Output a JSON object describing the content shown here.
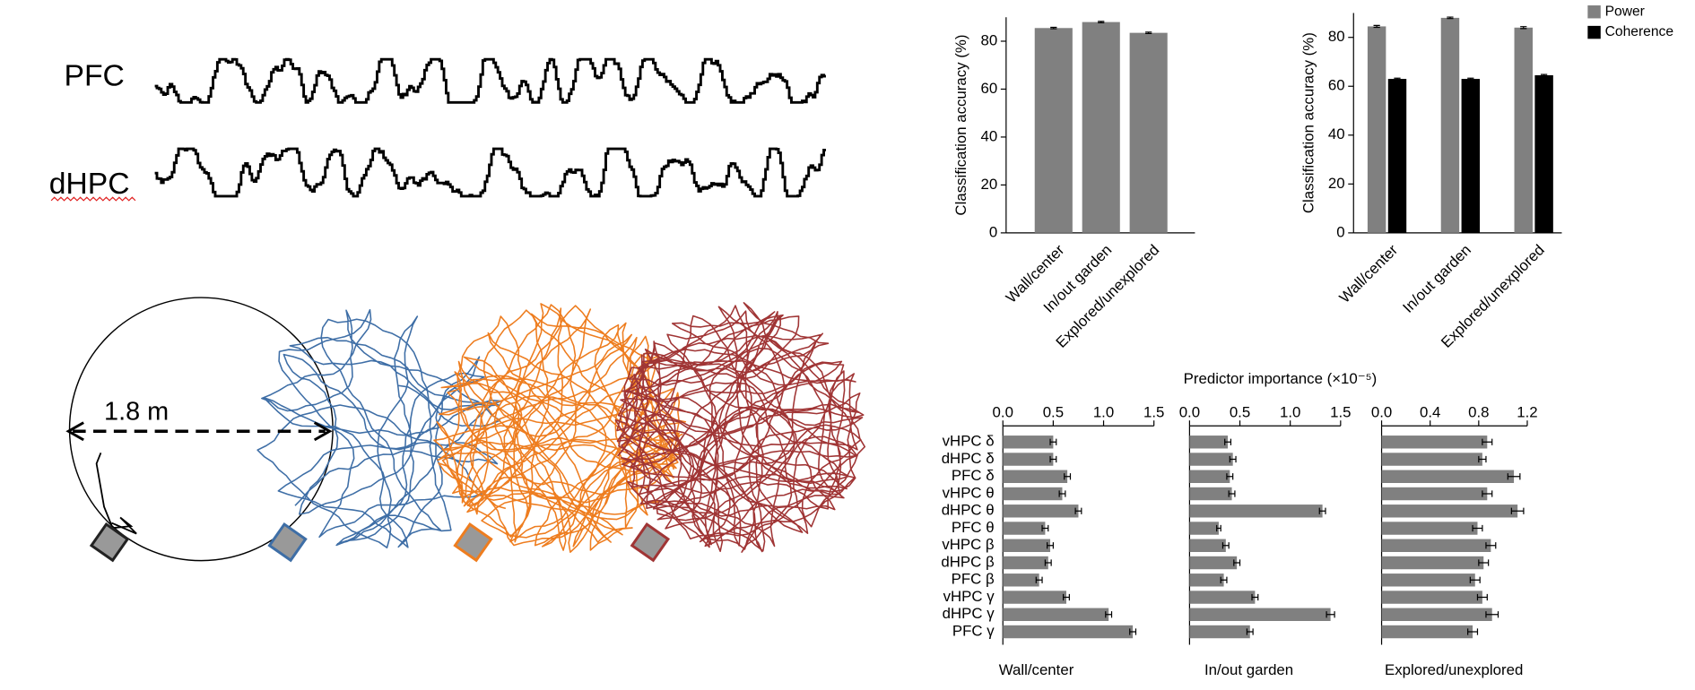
{
  "figure": {
    "trace_labels": [
      "PFC",
      "dHPC"
    ],
    "arena_scale": "1.8 m"
  },
  "chart_data": [
    {
      "type": "bar",
      "ylabel": "Classification accuracy (%)",
      "categories": [
        "Wall/center",
        "In/out garden",
        "Explored/unexplored"
      ],
      "values": [
        85.5,
        88,
        83.5
      ],
      "errors": [
        0.3,
        0.3,
        0.3
      ],
      "color": "#808080",
      "ylim": [
        0,
        90
      ],
      "yticks": [
        0,
        20,
        40,
        60,
        80
      ]
    },
    {
      "type": "grouped-bar",
      "ylabel": "Classification accuracy (%)",
      "categories": [
        "Wall/center",
        "In/out garden",
        "Explored/unexplored"
      ],
      "series": [
        {
          "name": "Power",
          "color": "#808080",
          "values": [
            84.5,
            88,
            84
          ],
          "errors": [
            0.4,
            0.3,
            0.4
          ]
        },
        {
          "name": "Coherence",
          "color": "#000000",
          "values": [
            63,
            63,
            64.5
          ],
          "errors": [
            0.3,
            0.3,
            0.3
          ]
        }
      ],
      "ylim": [
        0,
        90
      ],
      "yticks": [
        0,
        20,
        40,
        60,
        80
      ],
      "legend": "upper-right"
    },
    {
      "type": "hbar-panels",
      "xlabel": "Predictor importance (×10⁻⁵)",
      "categories": [
        "vHPC δ",
        "dHPC δ",
        "PFC δ",
        "vHPC θ",
        "dHPC θ",
        "PFC θ",
        "vHPC β",
        "dHPC β",
        "PFC β",
        "vHPC γ",
        "dHPC γ",
        "PFC γ"
      ],
      "color": "#808080",
      "panels": [
        {
          "title": "Wall/center",
          "values": [
            0.5,
            0.5,
            0.64,
            0.59,
            0.75,
            0.42,
            0.47,
            0.45,
            0.36,
            0.63,
            1.05,
            1.29
          ],
          "errors": [
            0.03,
            0.03,
            0.03,
            0.03,
            0.03,
            0.03,
            0.03,
            0.03,
            0.03,
            0.03,
            0.03,
            0.03
          ],
          "xlim": [
            0,
            1.5
          ],
          "xticks": [
            {
              "value": 0,
              "label": "0.0"
            },
            {
              "value": 0.5,
              "label": "0.5"
            },
            {
              "value": 1,
              "label": "1.0"
            },
            {
              "value": 1.5,
              "label": "1.5"
            }
          ]
        },
        {
          "title": "In/out garden",
          "values": [
            0.38,
            0.43,
            0.4,
            0.42,
            1.32,
            0.29,
            0.36,
            0.47,
            0.34,
            0.65,
            1.4,
            0.6
          ],
          "errors": [
            0.03,
            0.03,
            0.03,
            0.03,
            0.03,
            0.02,
            0.03,
            0.03,
            0.03,
            0.03,
            0.04,
            0.03
          ],
          "xlim": [
            0,
            1.5
          ],
          "xticks": [
            {
              "value": 0,
              "label": "0.0"
            },
            {
              "value": 0.5,
              "label": "0.5"
            },
            {
              "value": 1,
              "label": "1.0"
            },
            {
              "value": 1.5,
              "label": "1.5"
            }
          ]
        },
        {
          "title": "Explored/unexplored",
          "values": [
            0.87,
            0.83,
            1.09,
            0.87,
            1.12,
            0.79,
            0.9,
            0.84,
            0.77,
            0.83,
            0.91,
            0.75
          ],
          "errors": [
            0.04,
            0.03,
            0.05,
            0.04,
            0.05,
            0.04,
            0.04,
            0.04,
            0.04,
            0.04,
            0.05,
            0.04
          ],
          "xlim": [
            0,
            1.2
          ],
          "xticks": [
            {
              "value": 0,
              "label": "0.0"
            },
            {
              "value": 0.4,
              "label": "0.4"
            },
            {
              "value": 0.8,
              "label": "0.8"
            },
            {
              "value": 1.2,
              "label": "1.2"
            }
          ]
        }
      ]
    }
  ]
}
